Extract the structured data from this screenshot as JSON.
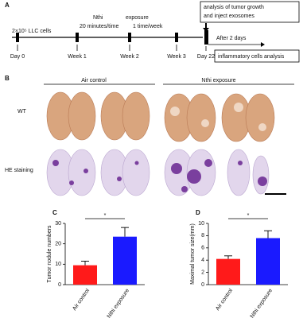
{
  "panel_a": {
    "label": "A",
    "cells": "2×10⁵ LLC  cells",
    "nthi": "Nthi",
    "exposure": "exposure",
    "schedule_1": "20 minutes/time",
    "schedule_2": "1 time/week",
    "timepoints": [
      "Day 0",
      "Week 1",
      "Week 2",
      "Week 3",
      "Day 22"
    ],
    "analysis_box": [
      "analysis of tumor growth",
      "and inject exosomes"
    ],
    "after": "After  2 days",
    "inflammatory_box": "inflammatory  cells  analysis"
  },
  "panel_b": {
    "label": "B",
    "groups": [
      "Air control",
      "Nthi exposure"
    ],
    "rows": [
      "WT",
      "HE staining"
    ]
  },
  "chart_data": [
    {
      "type": "bar",
      "label": "C",
      "ylabel": "Tumor   nodule   numbers",
      "categories": [
        "Air control",
        "Nthi exposure"
      ],
      "values": [
        9.5,
        23.5
      ],
      "errors": [
        2,
        4.5
      ],
      "colors": [
        "#ff1a1a",
        "#1a1aff"
      ],
      "ylim": [
        0,
        30
      ],
      "yticks": [
        0,
        10,
        20,
        30
      ],
      "annotation": "*"
    },
    {
      "type": "bar",
      "label": "D",
      "ylabel": "Maximal tumor size(mm)",
      "categories": [
        "Air control",
        "Nthi exposure"
      ],
      "values": [
        4.2,
        7.6
      ],
      "errors": [
        0.5,
        1.2
      ],
      "colors": [
        "#ff1a1a",
        "#1a1aff"
      ],
      "ylim": [
        0,
        10
      ],
      "yticks": [
        0,
        2,
        4,
        6,
        8,
        10
      ],
      "annotation": "*"
    }
  ]
}
